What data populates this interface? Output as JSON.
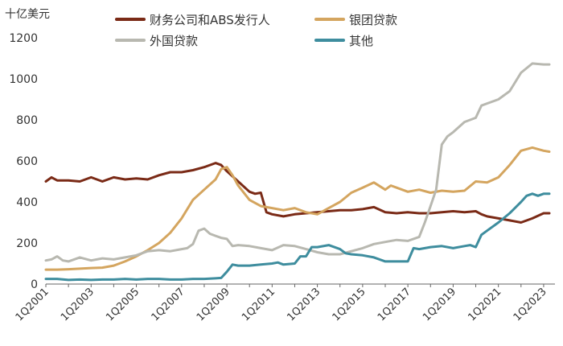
{
  "chart_data": {
    "type": "line",
    "title": "",
    "ylabel": "十亿美元",
    "xlabel": "",
    "ylim": [
      0,
      1200
    ],
    "yticks": [
      0,
      200,
      400,
      600,
      800,
      1000,
      1200
    ],
    "x_range": [
      2001.0,
      2023.5
    ],
    "xtick_labels": [
      "1Q2001",
      "1Q2003",
      "1Q2005",
      "1Q2007",
      "1Q2009",
      "1Q2011",
      "1Q2013",
      "1Q2015",
      "1Q2017",
      "1Q2019",
      "1Q2021",
      "1Q2023"
    ],
    "xtick_positions": [
      2001,
      2003,
      2005,
      2007,
      2009,
      2011,
      2013,
      2015,
      2017,
      2019,
      2021,
      2023
    ],
    "grid": false,
    "legend_position": "top",
    "series": [
      {
        "name": "财务公司和ABS发行人",
        "color": "#7a2a16",
        "points": [
          [
            2001.0,
            500
          ],
          [
            2001.25,
            520
          ],
          [
            2001.5,
            505
          ],
          [
            2002.0,
            505
          ],
          [
            2002.5,
            500
          ],
          [
            2003.0,
            520
          ],
          [
            2003.5,
            500
          ],
          [
            2004.0,
            520
          ],
          [
            2004.5,
            510
          ],
          [
            2005.0,
            515
          ],
          [
            2005.5,
            510
          ],
          [
            2006.0,
            530
          ],
          [
            2006.5,
            545
          ],
          [
            2007.0,
            545
          ],
          [
            2007.5,
            555
          ],
          [
            2008.0,
            570
          ],
          [
            2008.5,
            590
          ],
          [
            2008.75,
            580
          ],
          [
            2009.0,
            550
          ],
          [
            2009.5,
            500
          ],
          [
            2010.0,
            450
          ],
          [
            2010.25,
            440
          ],
          [
            2010.5,
            445
          ],
          [
            2010.75,
            350
          ],
          [
            2011.0,
            340
          ],
          [
            2011.5,
            330
          ],
          [
            2012.0,
            340
          ],
          [
            2012.5,
            345
          ],
          [
            2013.0,
            350
          ],
          [
            2013.5,
            355
          ],
          [
            2014.0,
            360
          ],
          [
            2014.5,
            360
          ],
          [
            2015.0,
            365
          ],
          [
            2015.5,
            375
          ],
          [
            2016.0,
            350
          ],
          [
            2016.5,
            345
          ],
          [
            2017.0,
            350
          ],
          [
            2017.5,
            345
          ],
          [
            2018.0,
            345
          ],
          [
            2018.5,
            350
          ],
          [
            2019.0,
            355
          ],
          [
            2019.5,
            350
          ],
          [
            2020.0,
            355
          ],
          [
            2020.25,
            340
          ],
          [
            2020.5,
            330
          ],
          [
            2021.0,
            320
          ],
          [
            2021.5,
            310
          ],
          [
            2022.0,
            300
          ],
          [
            2022.5,
            320
          ],
          [
            2023.0,
            345
          ],
          [
            2023.25,
            345
          ]
        ]
      },
      {
        "name": "银团贷款",
        "color": "#d4a55f",
        "points": [
          [
            2001.0,
            70
          ],
          [
            2001.5,
            70
          ],
          [
            2002.0,
            72
          ],
          [
            2002.5,
            75
          ],
          [
            2003.0,
            78
          ],
          [
            2003.5,
            80
          ],
          [
            2004.0,
            90
          ],
          [
            2004.5,
            110
          ],
          [
            2005.0,
            135
          ],
          [
            2005.5,
            165
          ],
          [
            2006.0,
            200
          ],
          [
            2006.5,
            250
          ],
          [
            2007.0,
            320
          ],
          [
            2007.5,
            410
          ],
          [
            2008.0,
            460
          ],
          [
            2008.5,
            510
          ],
          [
            2008.75,
            560
          ],
          [
            2009.0,
            570
          ],
          [
            2009.25,
            530
          ],
          [
            2009.5,
            480
          ],
          [
            2010.0,
            410
          ],
          [
            2010.5,
            380
          ],
          [
            2011.0,
            370
          ],
          [
            2011.5,
            360
          ],
          [
            2012.0,
            370
          ],
          [
            2012.5,
            350
          ],
          [
            2013.0,
            340
          ],
          [
            2013.5,
            370
          ],
          [
            2014.0,
            400
          ],
          [
            2014.5,
            445
          ],
          [
            2015.0,
            470
          ],
          [
            2015.5,
            495
          ],
          [
            2016.0,
            460
          ],
          [
            2016.25,
            480
          ],
          [
            2016.5,
            470
          ],
          [
            2017.0,
            450
          ],
          [
            2017.5,
            460
          ],
          [
            2018.0,
            445
          ],
          [
            2018.5,
            455
          ],
          [
            2019.0,
            450
          ],
          [
            2019.5,
            455
          ],
          [
            2020.0,
            500
          ],
          [
            2020.5,
            495
          ],
          [
            2021.0,
            520
          ],
          [
            2021.5,
            580
          ],
          [
            2022.0,
            650
          ],
          [
            2022.5,
            665
          ],
          [
            2023.0,
            650
          ],
          [
            2023.25,
            645
          ]
        ]
      },
      {
        "name": "外国贷款",
        "color": "#b8b8b0",
        "points": [
          [
            2001.0,
            115
          ],
          [
            2001.25,
            120
          ],
          [
            2001.5,
            135
          ],
          [
            2001.75,
            115
          ],
          [
            2002.0,
            110
          ],
          [
            2002.5,
            130
          ],
          [
            2003.0,
            115
          ],
          [
            2003.5,
            125
          ],
          [
            2004.0,
            120
          ],
          [
            2004.5,
            130
          ],
          [
            2005.0,
            140
          ],
          [
            2005.5,
            160
          ],
          [
            2006.0,
            165
          ],
          [
            2006.5,
            160
          ],
          [
            2007.0,
            170
          ],
          [
            2007.25,
            175
          ],
          [
            2007.5,
            195
          ],
          [
            2007.75,
            260
          ],
          [
            2008.0,
            270
          ],
          [
            2008.25,
            245
          ],
          [
            2008.5,
            235
          ],
          [
            2008.75,
            225
          ],
          [
            2009.0,
            220
          ],
          [
            2009.25,
            185
          ],
          [
            2009.5,
            190
          ],
          [
            2010.0,
            185
          ],
          [
            2010.5,
            175
          ],
          [
            2011.0,
            165
          ],
          [
            2011.5,
            190
          ],
          [
            2012.0,
            185
          ],
          [
            2012.5,
            170
          ],
          [
            2013.0,
            155
          ],
          [
            2013.5,
            145
          ],
          [
            2014.0,
            145
          ],
          [
            2014.5,
            160
          ],
          [
            2015.0,
            175
          ],
          [
            2015.5,
            195
          ],
          [
            2016.0,
            205
          ],
          [
            2016.5,
            215
          ],
          [
            2017.0,
            210
          ],
          [
            2017.5,
            230
          ],
          [
            2017.75,
            300
          ],
          [
            2018.0,
            380
          ],
          [
            2018.25,
            460
          ],
          [
            2018.5,
            680
          ],
          [
            2018.75,
            720
          ],
          [
            2019.0,
            740
          ],
          [
            2019.5,
            790
          ],
          [
            2020.0,
            810
          ],
          [
            2020.25,
            870
          ],
          [
            2020.5,
            880
          ],
          [
            2021.0,
            900
          ],
          [
            2021.5,
            940
          ],
          [
            2022.0,
            1030
          ],
          [
            2022.5,
            1075
          ],
          [
            2023.0,
            1070
          ],
          [
            2023.25,
            1070
          ]
        ]
      },
      {
        "name": "其他",
        "color": "#3e8d9e",
        "points": [
          [
            2001.0,
            25
          ],
          [
            2001.5,
            25
          ],
          [
            2002.0,
            20
          ],
          [
            2002.5,
            22
          ],
          [
            2003.0,
            20
          ],
          [
            2003.5,
            22
          ],
          [
            2004.0,
            22
          ],
          [
            2004.5,
            25
          ],
          [
            2005.0,
            22
          ],
          [
            2005.5,
            25
          ],
          [
            2006.0,
            25
          ],
          [
            2006.5,
            22
          ],
          [
            2007.0,
            22
          ],
          [
            2007.5,
            25
          ],
          [
            2008.0,
            25
          ],
          [
            2008.5,
            28
          ],
          [
            2008.75,
            30
          ],
          [
            2009.0,
            60
          ],
          [
            2009.25,
            95
          ],
          [
            2009.5,
            90
          ],
          [
            2010.0,
            90
          ],
          [
            2010.5,
            95
          ],
          [
            2011.0,
            100
          ],
          [
            2011.25,
            105
          ],
          [
            2011.5,
            95
          ],
          [
            2012.0,
            100
          ],
          [
            2012.25,
            135
          ],
          [
            2012.5,
            135
          ],
          [
            2012.75,
            180
          ],
          [
            2013.0,
            180
          ],
          [
            2013.5,
            190
          ],
          [
            2014.0,
            170
          ],
          [
            2014.25,
            150
          ],
          [
            2014.5,
            145
          ],
          [
            2015.0,
            140
          ],
          [
            2015.5,
            130
          ],
          [
            2016.0,
            110
          ],
          [
            2016.5,
            110
          ],
          [
            2017.0,
            110
          ],
          [
            2017.25,
            175
          ],
          [
            2017.5,
            170
          ],
          [
            2018.0,
            180
          ],
          [
            2018.5,
            185
          ],
          [
            2019.0,
            175
          ],
          [
            2019.5,
            185
          ],
          [
            2019.75,
            190
          ],
          [
            2020.0,
            180
          ],
          [
            2020.25,
            240
          ],
          [
            2020.5,
            260
          ],
          [
            2021.0,
            300
          ],
          [
            2021.5,
            345
          ],
          [
            2022.0,
            400
          ],
          [
            2022.25,
            430
          ],
          [
            2022.5,
            440
          ],
          [
            2022.75,
            430
          ],
          [
            2023.0,
            440
          ],
          [
            2023.25,
            440
          ]
        ]
      }
    ]
  }
}
